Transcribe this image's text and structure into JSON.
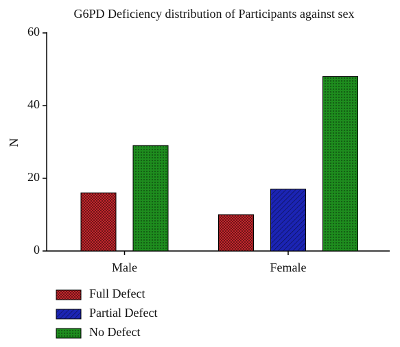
{
  "chart_data": {
    "type": "bar",
    "title": "G6PD Deficiency distribution of Participants against sex",
    "y_label": "N",
    "categories": [
      "Male",
      "Female"
    ],
    "series": [
      {
        "name": "Full Defect",
        "color": "#c4262c",
        "values": [
          16,
          10
        ]
      },
      {
        "name": "Partial Defect",
        "color": "#1b24b4",
        "values": [
          null,
          17
        ]
      },
      {
        "name": "No Defect",
        "color": "#1e8c1e",
        "values": [
          29,
          48
        ]
      }
    ],
    "ylim": [
      0,
      60
    ],
    "yticks": [
      0,
      20,
      40,
      60
    ]
  }
}
